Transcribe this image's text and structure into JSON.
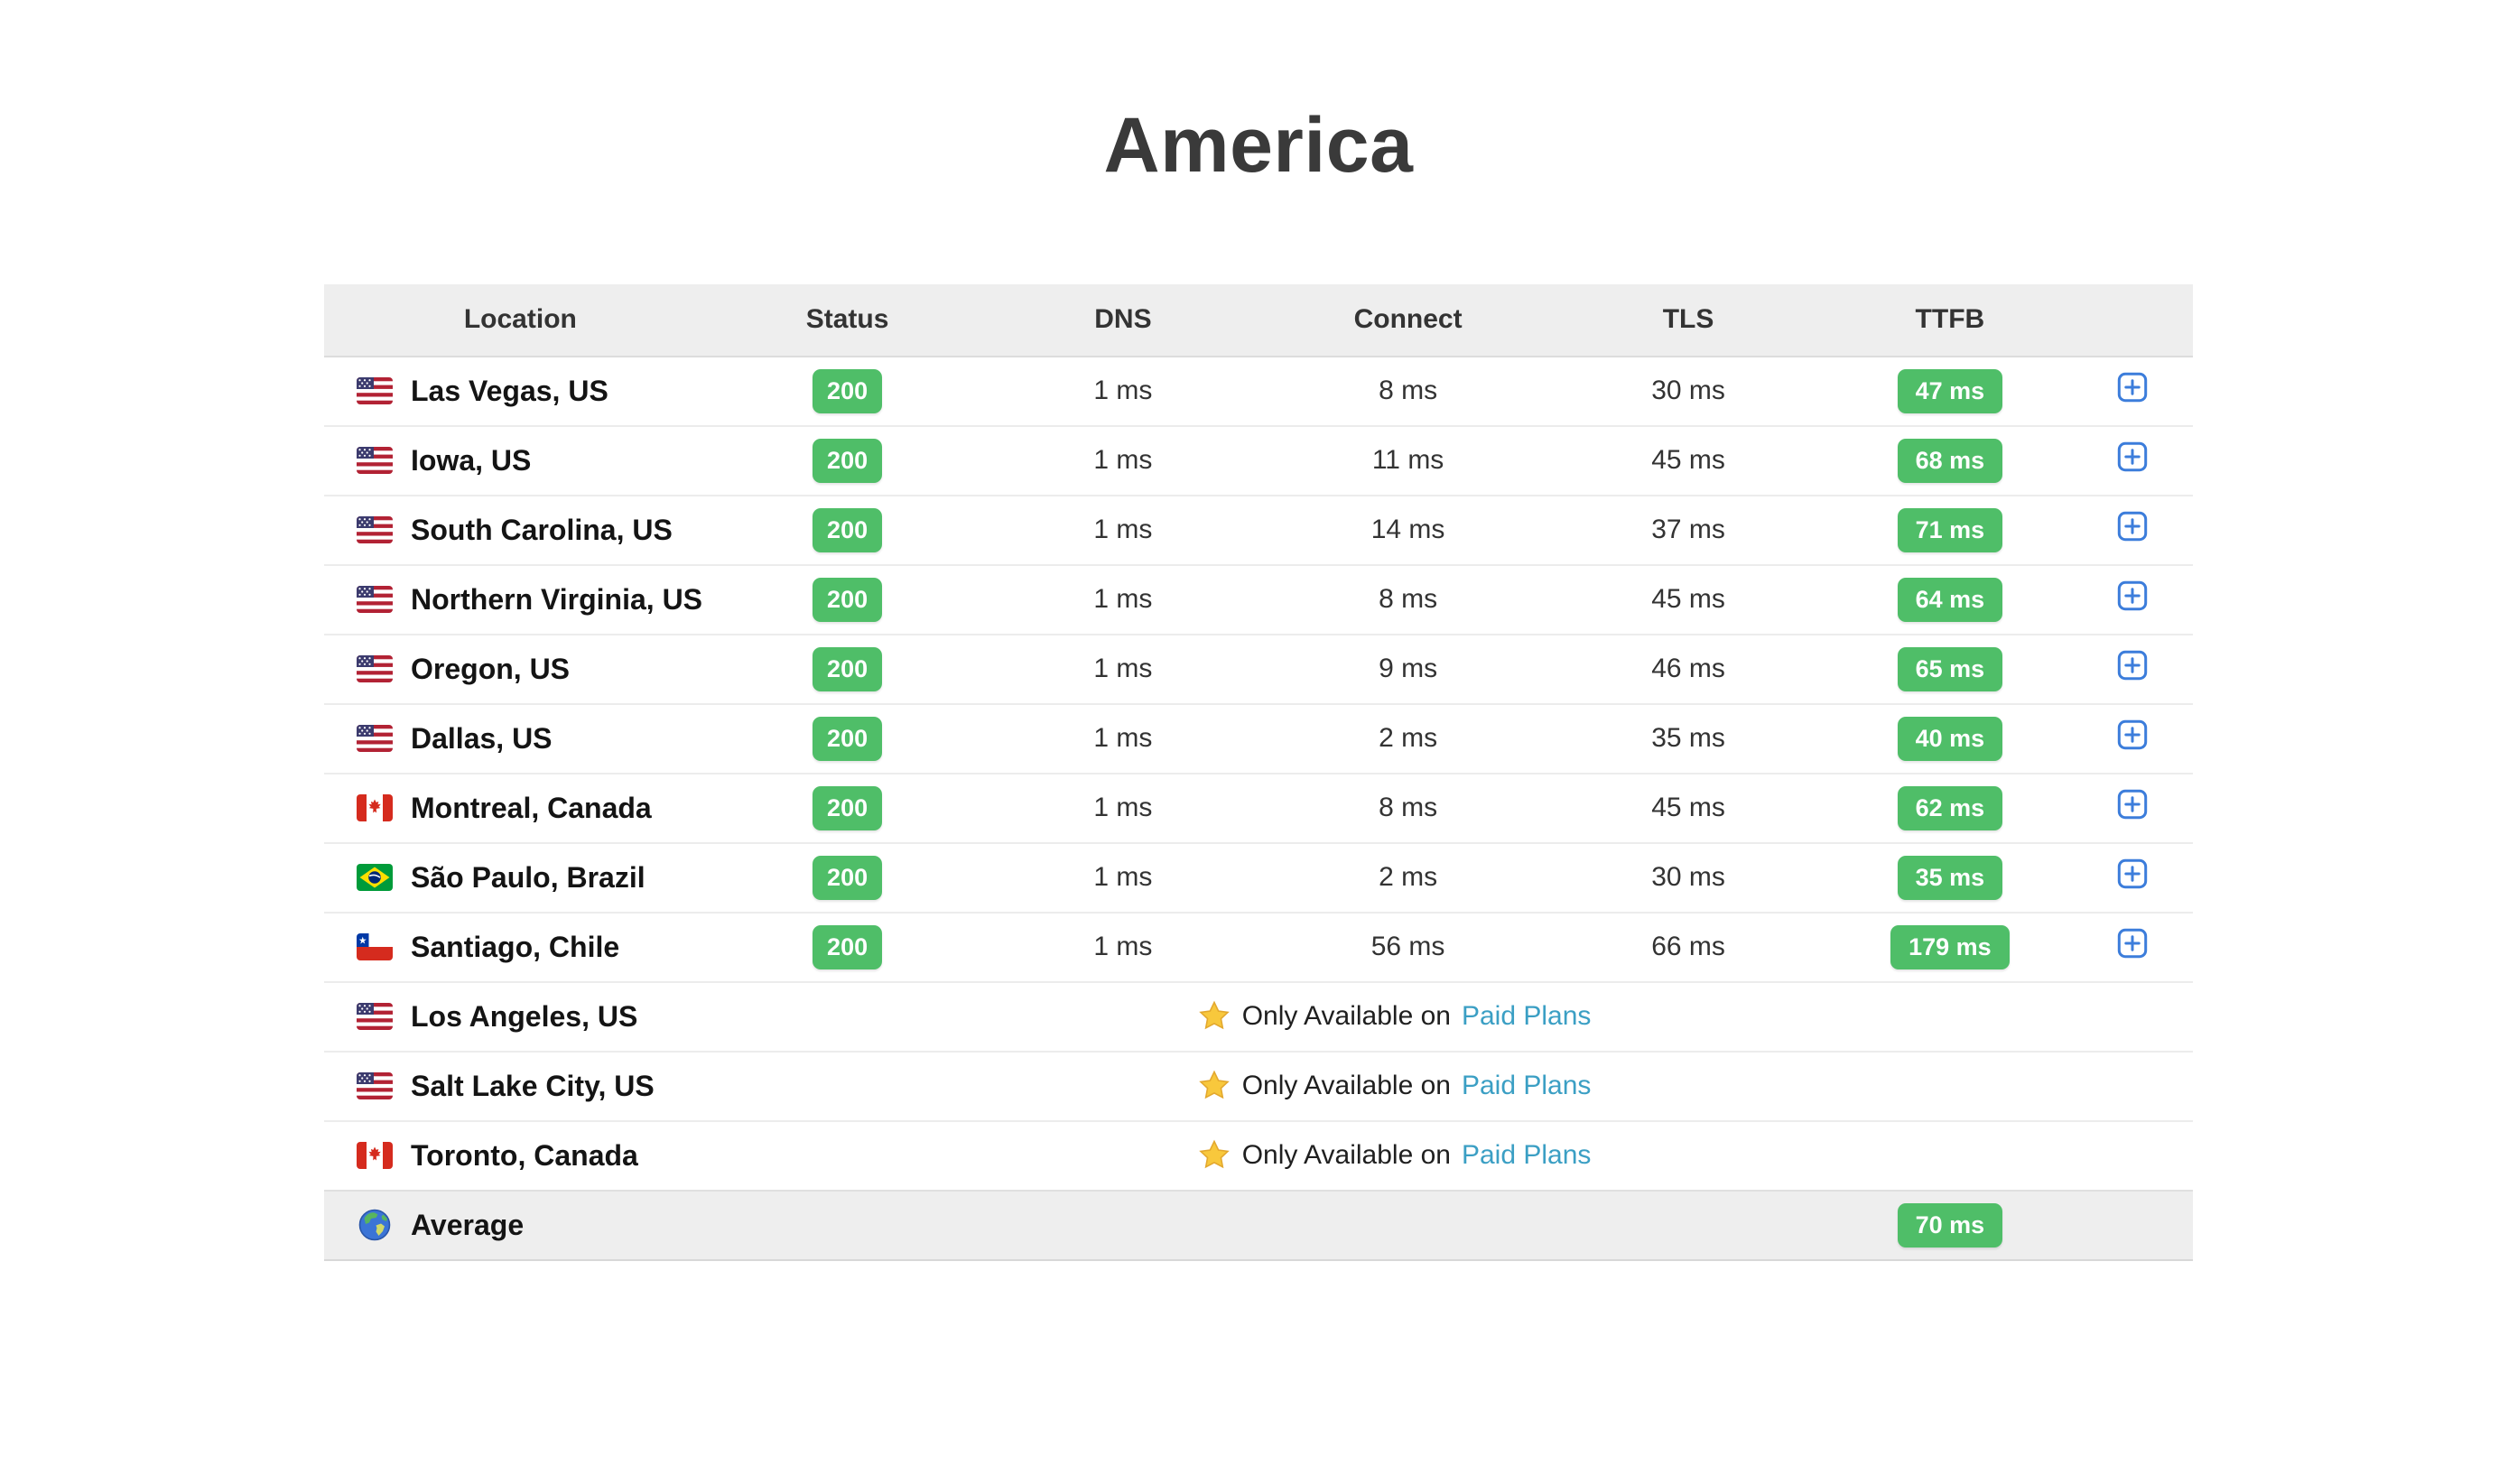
{
  "title": "America",
  "table": {
    "headers": [
      {
        "key": "location",
        "label": "Location"
      },
      {
        "key": "status",
        "label": "Status"
      },
      {
        "key": "dns",
        "label": "DNS"
      },
      {
        "key": "connect",
        "label": "Connect"
      },
      {
        "key": "tls",
        "label": "TLS"
      },
      {
        "key": "ttfb",
        "label": "TTFB"
      },
      {
        "key": "expand",
        "label": ""
      }
    ],
    "paid_notice": {
      "prefix": "Only Available on",
      "link_label": "Paid Plans",
      "icon": "star-icon"
    },
    "expand_icon": "plus-icon",
    "rows": [
      {
        "type": "data",
        "flag": "us-flag-icon",
        "location": "Las Vegas, US",
        "status": "200",
        "dns": "1 ms",
        "connect": "8 ms",
        "tls": "30 ms",
        "ttfb": "47 ms"
      },
      {
        "type": "data",
        "flag": "us-flag-icon",
        "location": "Iowa, US",
        "status": "200",
        "dns": "1 ms",
        "connect": "11 ms",
        "tls": "45 ms",
        "ttfb": "68 ms"
      },
      {
        "type": "data",
        "flag": "us-flag-icon",
        "location": "South Carolina, US",
        "status": "200",
        "dns": "1 ms",
        "connect": "14 ms",
        "tls": "37 ms",
        "ttfb": "71 ms"
      },
      {
        "type": "data",
        "flag": "us-flag-icon",
        "location": "Northern Virginia, US",
        "status": "200",
        "dns": "1 ms",
        "connect": "8 ms",
        "tls": "45 ms",
        "ttfb": "64 ms"
      },
      {
        "type": "data",
        "flag": "us-flag-icon",
        "location": "Oregon, US",
        "status": "200",
        "dns": "1 ms",
        "connect": "9 ms",
        "tls": "46 ms",
        "ttfb": "65 ms"
      },
      {
        "type": "data",
        "flag": "us-flag-icon",
        "location": "Dallas, US",
        "status": "200",
        "dns": "1 ms",
        "connect": "2 ms",
        "tls": "35 ms",
        "ttfb": "40 ms"
      },
      {
        "type": "data",
        "flag": "canada-flag-icon",
        "location": "Montreal, Canada",
        "status": "200",
        "dns": "1 ms",
        "connect": "8 ms",
        "tls": "45 ms",
        "ttfb": "62 ms"
      },
      {
        "type": "data",
        "flag": "brazil-flag-icon",
        "location": "São Paulo, Brazil",
        "status": "200",
        "dns": "1 ms",
        "connect": "2 ms",
        "tls": "30 ms",
        "ttfb": "35 ms"
      },
      {
        "type": "data",
        "flag": "chile-flag-icon",
        "location": "Santiago, Chile",
        "status": "200",
        "dns": "1 ms",
        "connect": "56 ms",
        "tls": "66 ms",
        "ttfb": "179 ms"
      },
      {
        "type": "paid",
        "flag": "us-flag-icon",
        "location": "Los Angeles, US"
      },
      {
        "type": "paid",
        "flag": "us-flag-icon",
        "location": "Salt Lake City, US"
      },
      {
        "type": "paid",
        "flag": "canada-flag-icon",
        "location": "Toronto, Canada"
      },
      {
        "type": "average",
        "flag": "globe-icon",
        "location": "Average",
        "ttfb": "70 ms"
      }
    ]
  },
  "colors": {
    "badge_green": "#4fbe68",
    "link_teal": "#3b9fc4",
    "expand_blue": "#3c7ddb",
    "header_bg": "#eeeeee",
    "average_bg": "#eeeeee",
    "title_text": "#3a3a3a"
  }
}
